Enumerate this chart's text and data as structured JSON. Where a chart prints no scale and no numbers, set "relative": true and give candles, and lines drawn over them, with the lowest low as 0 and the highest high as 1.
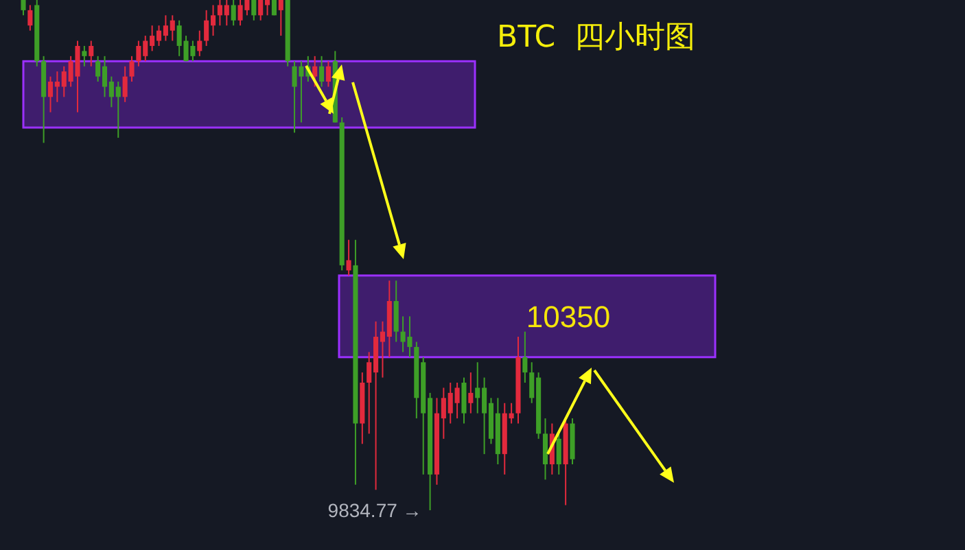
{
  "chart_data": {
    "type": "candlestick",
    "title": "BTC  四小时图",
    "relative": true,
    "categories": [
      null,
      null,
      null,
      null,
      null,
      null,
      null,
      null,
      null,
      null,
      null,
      null,
      null,
      null,
      null,
      null,
      null,
      null,
      null,
      null,
      null,
      null,
      null,
      null,
      null,
      null,
      null,
      null,
      null,
      null,
      null,
      null,
      null,
      null,
      null,
      null,
      null,
      null,
      null,
      null,
      null,
      null,
      null,
      null,
      null,
      null,
      null,
      null,
      null,
      null,
      null,
      null,
      null,
      null,
      null,
      null,
      null,
      null,
      null,
      null,
      null,
      null,
      null,
      null,
      null,
      null,
      null,
      null,
      null,
      null,
      null,
      null,
      null,
      null,
      null,
      null,
      null,
      null,
      null,
      null,
      null,
      null
    ],
    "ohlc": [
      [
        1.0,
        1.0,
        0.97,
        0.98
      ],
      [
        0.95,
        0.99,
        0.94,
        0.98
      ],
      [
        0.99,
        1.0,
        0.87,
        0.88
      ],
      [
        0.88,
        0.89,
        0.72,
        0.81
      ],
      [
        0.81,
        0.85,
        0.78,
        0.84
      ],
      [
        0.83,
        0.86,
        0.8,
        0.84
      ],
      [
        0.83,
        0.87,
        0.81,
        0.86
      ],
      [
        0.84,
        0.89,
        0.83,
        0.88
      ],
      [
        0.85,
        0.92,
        0.78,
        0.91
      ],
      [
        0.9,
        0.91,
        0.87,
        0.89
      ],
      [
        0.89,
        0.92,
        0.87,
        0.91
      ],
      [
        0.88,
        0.89,
        0.84,
        0.85
      ],
      [
        0.87,
        0.89,
        0.81,
        0.83
      ],
      [
        0.84,
        0.85,
        0.79,
        0.81
      ],
      [
        0.83,
        0.84,
        0.73,
        0.81
      ],
      [
        0.81,
        0.87,
        0.8,
        0.85
      ],
      [
        0.85,
        0.89,
        0.84,
        0.88
      ],
      [
        0.88,
        0.92,
        0.87,
        0.91
      ],
      [
        0.89,
        0.93,
        0.88,
        0.92
      ],
      [
        0.91,
        0.95,
        0.9,
        0.93
      ],
      [
        0.92,
        0.95,
        0.91,
        0.94
      ],
      [
        0.93,
        0.97,
        0.92,
        0.95
      ],
      [
        0.94,
        0.97,
        0.92,
        0.96
      ],
      [
        0.95,
        0.96,
        0.89,
        0.91
      ],
      [
        0.92,
        0.93,
        0.88,
        0.88
      ],
      [
        0.91,
        0.92,
        0.88,
        0.89
      ],
      [
        0.9,
        0.94,
        0.89,
        0.92
      ],
      [
        0.92,
        0.98,
        0.91,
        0.96
      ],
      [
        0.95,
        0.99,
        0.93,
        0.97
      ],
      [
        0.97,
        1.0,
        0.95,
        0.99
      ],
      [
        0.97,
        1.0,
        0.95,
        0.99
      ],
      [
        0.99,
        1.0,
        0.95,
        0.96
      ],
      [
        0.96,
        1.0,
        0.95,
        0.99
      ],
      [
        0.98,
        1.0,
        0.97,
        1.0
      ],
      [
        1.0,
        1.0,
        0.96,
        0.97
      ],
      [
        0.97,
        1.0,
        0.96,
        1.0
      ],
      [
        0.99,
        1.0,
        0.97,
        1.0
      ],
      [
        1.0,
        1.0,
        0.97,
        0.97
      ],
      [
        0.98,
        1.0,
        0.93,
        1.0
      ],
      [
        1.0,
        1.0,
        0.87,
        0.88
      ],
      [
        0.87,
        0.88,
        0.74,
        0.83
      ],
      [
        0.87,
        0.88,
        0.76,
        0.85
      ],
      [
        0.87,
        0.89,
        0.84,
        0.85
      ],
      [
        0.85,
        0.89,
        0.83,
        0.87
      ],
      [
        0.87,
        0.89,
        0.83,
        0.84
      ],
      [
        0.84,
        0.88,
        0.83,
        0.87
      ],
      [
        0.88,
        0.9,
        0.76,
        0.76
      ],
      [
        0.76,
        0.77,
        0.47,
        0.48
      ],
      [
        0.47,
        0.53,
        0.46,
        0.49
      ],
      [
        0.48,
        0.53,
        0.05,
        0.17
      ],
      [
        0.17,
        0.27,
        0.13,
        0.25
      ],
      [
        0.25,
        0.31,
        0.15,
        0.29
      ],
      [
        0.27,
        0.37,
        0.04,
        0.34
      ],
      [
        0.33,
        0.37,
        0.26,
        0.35
      ],
      [
        0.34,
        0.45,
        0.3,
        0.41
      ],
      [
        0.41,
        0.45,
        0.33,
        0.35
      ],
      [
        0.35,
        0.38,
        0.31,
        0.33
      ],
      [
        0.34,
        0.38,
        0.3,
        0.32
      ],
      [
        0.32,
        0.33,
        0.18,
        0.22
      ],
      [
        0.29,
        0.3,
        0.07,
        0.19
      ],
      [
        0.22,
        0.23,
        0,
        0.07
      ],
      [
        0.07,
        0.22,
        0.05,
        0.19
      ],
      [
        0.18,
        0.24,
        0.14,
        0.22
      ],
      [
        0.19,
        0.25,
        0.17,
        0.23
      ],
      [
        0.21,
        0.25,
        0.18,
        0.24
      ],
      [
        0.25,
        0.26,
        0.17,
        0.19
      ],
      [
        0.21,
        0.27,
        0.19,
        0.23
      ],
      [
        0.24,
        0.29,
        0.19,
        0.22
      ],
      [
        0.24,
        0.26,
        0.11,
        0.19
      ],
      [
        0.21,
        0.22,
        0.13,
        0.14
      ],
      [
        0.19,
        0.22,
        0.09,
        0.11
      ],
      [
        0.11,
        0.21,
        0.07,
        0.19
      ],
      [
        0.18,
        0.21,
        0.17,
        0.19
      ],
      [
        0.19,
        0.34,
        0.17,
        0.3
      ],
      [
        0.3,
        0.35,
        0.25,
        0.27
      ],
      [
        0.27,
        0.29,
        0.21,
        0.22
      ],
      [
        0.26,
        0.27,
        0.14,
        0.15
      ],
      [
        0.15,
        0.18,
        0.06,
        0.09
      ],
      [
        0.09,
        0.17,
        0.07,
        0.15
      ],
      [
        0.14,
        0.15,
        0.07,
        0.09
      ],
      [
        0.09,
        0.18,
        0.01,
        0.17
      ],
      [
        0.17,
        0.18,
        0.09,
        0.1
      ]
    ],
    "colors": [
      "#3e9f27",
      "#e22a3d",
      "#3e9f27",
      "#3e9f27",
      "#e22a3d",
      "#e22a3d",
      "#e22a3d",
      "#e22a3d",
      "#e22a3d",
      "#3e9f27",
      "#e22a3d",
      "#3e9f27",
      "#3e9f27",
      "#3e9f27",
      "#3e9f27",
      "#e22a3d",
      "#e22a3d",
      "#e22a3d",
      "#e22a3d",
      "#e22a3d",
      "#e22a3d",
      "#e22a3d",
      "#e22a3d",
      "#3e9f27",
      "#3e9f27",
      "#3e9f27",
      "#e22a3d",
      "#e22a3d",
      "#e22a3d",
      "#e22a3d",
      "#e22a3d",
      "#3e9f27",
      "#e22a3d",
      "#e22a3d",
      "#3e9f27",
      "#e22a3d",
      "#e22a3d",
      "#3e9f27",
      "#e22a3d",
      "#3e9f27",
      "#3e9f27",
      "#3e9f27",
      "#3e9f27",
      "#e22a3d",
      "#3e9f27",
      "#e22a3d",
      "#3e9f27",
      "#3e9f27",
      "#e22a3d",
      "#3e9f27",
      "#e22a3d",
      "#e22a3d",
      "#e22a3d",
      "#e22a3d",
      "#e22a3d",
      "#3e9f27",
      "#3e9f27",
      "#3e9f27",
      "#3e9f27",
      "#3e9f27",
      "#3e9f27",
      "#e22a3d",
      "#e22a3d",
      "#e22a3d",
      "#e22a3d",
      "#3e9f27",
      "#e22a3d",
      "#3e9f27",
      "#3e9f27",
      "#3e9f27",
      "#3e9f27",
      "#e22a3d",
      "#e22a3d",
      "#e22a3d",
      "#3e9f27",
      "#3e9f27",
      "#3e9f27",
      "#3e9f27",
      "#e22a3d",
      "#3e9f27",
      "#e22a3d",
      "#3e9f27"
    ],
    "bands": [
      {
        "axis": "y",
        "from": 0.75,
        "to": 0.88,
        "color": "#5b1f9e"
      },
      {
        "axis": "y",
        "from": 0.3,
        "to": 0.46,
        "color": "#5b1f9e",
        "label": "10350"
      }
    ],
    "annotations": [
      "9834.77 →"
    ]
  }
}
